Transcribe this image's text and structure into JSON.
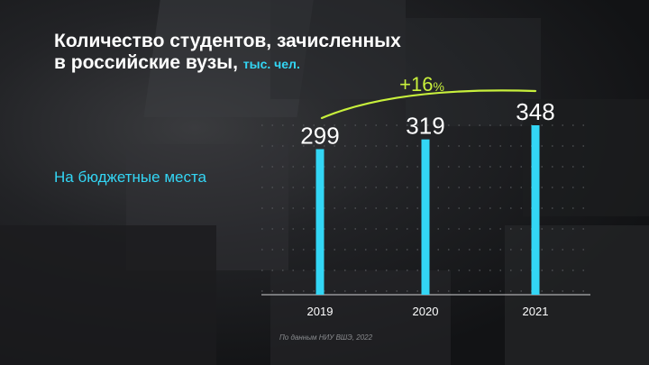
{
  "title": {
    "main_line1": "Количество студентов, зачисленных",
    "main_line2": "в российские вузы,",
    "unit": "тыс. чел."
  },
  "series_label": "На бюджетные места",
  "source": "По данным НИУ ВШЭ, 2022",
  "growth_annotation": {
    "value": "+16",
    "unit": "%"
  },
  "colors": {
    "bar": "#33d6f5",
    "accent": "#c8f03c",
    "text": "#ffffff",
    "background": "#111214"
  },
  "chart_data": {
    "type": "bar",
    "categories": [
      "2019",
      "2020",
      "2021"
    ],
    "values": [
      299,
      319,
      348
    ],
    "data_labels": [
      "299",
      "319",
      "348"
    ],
    "ylim": [
      0,
      348
    ],
    "grid": true
  }
}
